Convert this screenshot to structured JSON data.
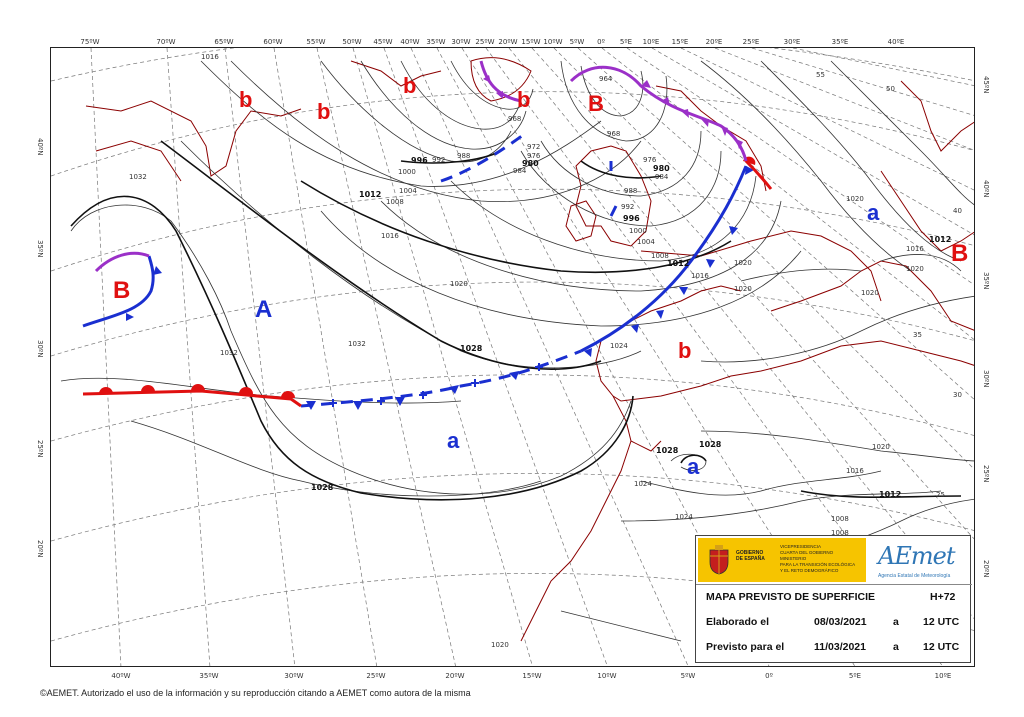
{
  "top_longitudes": [
    "75ºW",
    "70ºW",
    "65ºW",
    "60ºW",
    "55ºW",
    "50ºW",
    "45ºW",
    "40ºW",
    "35ºW",
    "30ºW",
    "25ºW",
    "20ºW",
    "15ºW",
    "10ºW",
    "5ºW",
    "0º",
    "5ºE",
    "10ºE",
    "15ºE",
    "20ºE",
    "25ºE",
    "30ºE",
    "35ºE",
    "40ºE"
  ],
  "bottom_longitudes": [
    "40ºW",
    "35ºW",
    "30ºW",
    "25ºW",
    "20ºW",
    "15ºW",
    "10ºW",
    "5ºW",
    "0º",
    "5ºE",
    "10ºE"
  ],
  "left_latitudes": [
    "40ºN",
    "35ºN",
    "30ºN",
    "25ºN",
    "20ºN"
  ],
  "right_latitudes": [
    "45ºN",
    "40ºN",
    "35ºN",
    "30ºN",
    "25ºN",
    "20ºN"
  ],
  "centers": [
    {
      "label": "b",
      "color": "#e01010"
    },
    {
      "label": "b",
      "color": "#e01010"
    },
    {
      "label": "b",
      "color": "#e01010"
    },
    {
      "label": "b",
      "color": "#e01010"
    },
    {
      "label": "B",
      "color": "#e01010"
    },
    {
      "label": "B",
      "color": "#e01010"
    },
    {
      "label": "A",
      "color": "#1a2fd0"
    },
    {
      "label": "a",
      "color": "#1a2fd0"
    },
    {
      "label": "a",
      "color": "#1a2fd0"
    },
    {
      "label": "a",
      "color": "#1a2fd0"
    },
    {
      "label": "b",
      "color": "#e01010"
    },
    {
      "label": "B",
      "color": "#e01010"
    }
  ],
  "isobar_labels": [
    "1016",
    "1032",
    "1012",
    "1008",
    "1004",
    "1000",
    "996",
    "992",
    "988",
    "1016",
    "968",
    "972",
    "976",
    "980",
    "984",
    "964",
    "968",
    "976",
    "980",
    "984",
    "988",
    "992",
    "996",
    "1000",
    "1004",
    "1008",
    "1012",
    "1016",
    "1020",
    "1020",
    "1020",
    "1024",
    "1028",
    "1032",
    "1032",
    "1028",
    "1028",
    "1028",
    "1024",
    "1024",
    "1020",
    "1016",
    "1012",
    "1008",
    "1008",
    "1020",
    "1020",
    "1012",
    "1016",
    "1020",
    "1020",
    "55",
    "50",
    "40",
    "35",
    "30",
    "25"
  ],
  "legend": {
    "gov_line1": "GOBIERNO",
    "gov_line2": "DE ESPAÑA",
    "ministry_line1": "VICEPRESIDENCIA",
    "ministry_line2": "CUARTA DEL GOBIERNO",
    "ministry_line3": "MINISTERIO",
    "ministry_line4": "PARA LA TRANSICIÓN ECOLÓGICA",
    "ministry_line5": "Y EL RETO DEMOGRÁFICO",
    "aemet_logo": "AEmet",
    "aemet_sub": "Agencia Estatal de Meteorología",
    "title": "MAPA PREVISTO DE SUPERFICIE",
    "horizon": "H+72",
    "made_label": "Elaborado el",
    "made_date": "08/03/2021",
    "made_a": "a",
    "made_time": "12 UTC",
    "valid_label": "Previsto para el",
    "valid_date": "11/03/2021",
    "valid_a": "a",
    "valid_time": "12 UTC"
  },
  "copyright": "©AEMET. Autorizado el uso de la información y su reproducción citando a AEMET como autora de la misma",
  "colors": {
    "cold_front": "#1a2fd0",
    "warm_front": "#e01010",
    "occluded_front": "#9b30c8",
    "coast": "#8b0000",
    "high": "#1a2fd0",
    "low": "#e01010"
  }
}
